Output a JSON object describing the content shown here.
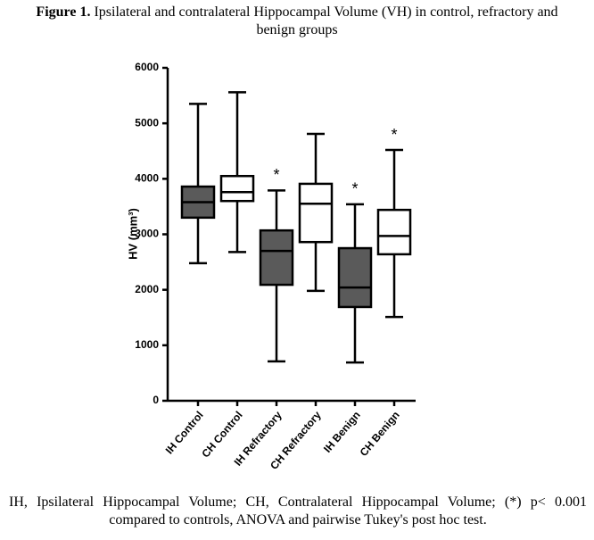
{
  "chart_data": {
    "type": "box",
    "title_label": "Figure 1.",
    "title": "Ipsilateral and contralateral Hippocampal Volume (VH) in control, refractory and benign groups",
    "y_label": "HV (mm³)",
    "categories": [
      "IH Control",
      "CH Control",
      "IH Refractory",
      "CH Refractory",
      "IH Benign",
      "CH Benign"
    ],
    "min": [
      2480,
      2680,
      710,
      1980,
      690,
      1510
    ],
    "q1": [
      3300,
      3600,
      2090,
      2860,
      1690,
      2640
    ],
    "median": [
      3580,
      3760,
      2700,
      3550,
      2040,
      2970
    ],
    "q3": [
      3860,
      4050,
      3070,
      3910,
      2750,
      3440
    ],
    "max": [
      5350,
      5560,
      3790,
      4810,
      3540,
      4520
    ],
    "colors": [
      "#5a5a5a",
      "#ffffff",
      "#5a5a5a",
      "#ffffff",
      "#5a5a5a",
      "#ffffff"
    ],
    "significance": [
      null,
      null,
      "*",
      null,
      "*",
      "*"
    ],
    "ylim": [
      0,
      6000
    ],
    "yticks": [
      0,
      1000,
      2000,
      3000,
      4000,
      5000,
      6000
    ],
    "caption": "IH, Ipsilateral Hippocampal Volume; CH, Contralateral Hippocampal Volume; (*) p< 0.001 compared to controls, ANOVA and pairwise Tukey's post hoc test."
  }
}
